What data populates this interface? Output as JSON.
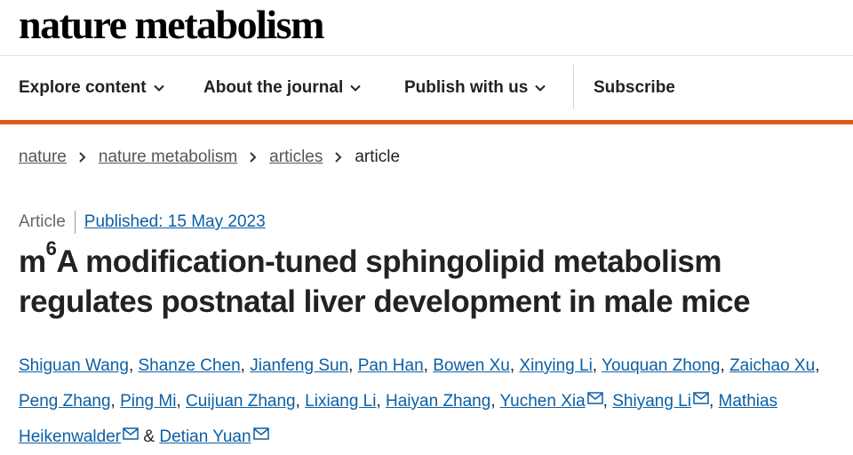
{
  "brand": {
    "logo": "nature metabolism"
  },
  "nav": {
    "explore": "Explore content",
    "about": "About the journal",
    "publish": "Publish with us",
    "subscribe": "Subscribe"
  },
  "breadcrumb": {
    "items": [
      "nature",
      "nature metabolism",
      "articles"
    ],
    "current": "article"
  },
  "article": {
    "type": "Article",
    "published": "Published: 15 May 2023",
    "title_prefix": "m",
    "title_sup": "6",
    "title_rest": "A modification-tuned sphingolipid metabolism regulates postnatal liver development in male mice",
    "authors_line1": [
      "Shiguan Wang",
      "Shanze Chen",
      "Jianfeng Sun",
      "Pan Han",
      "Bowen Xu",
      "Xinying Li",
      "Youquan Zhong",
      "Zaichao Xu"
    ],
    "authors_line2": [
      "Peng Zhang",
      "Ping Mi",
      "Cuijuan Zhang",
      "Lixiang Li",
      "Haiyan Zhang",
      "Yuchen Xia",
      "Shiyang Li",
      "Mathias"
    ],
    "authors_line3": [
      "Heikenwalder",
      "Detian Yuan"
    ],
    "ampersand": "&",
    "separator": ","
  },
  "colors": {
    "accent": "#e05a1c",
    "link": "#0b5fa5"
  }
}
